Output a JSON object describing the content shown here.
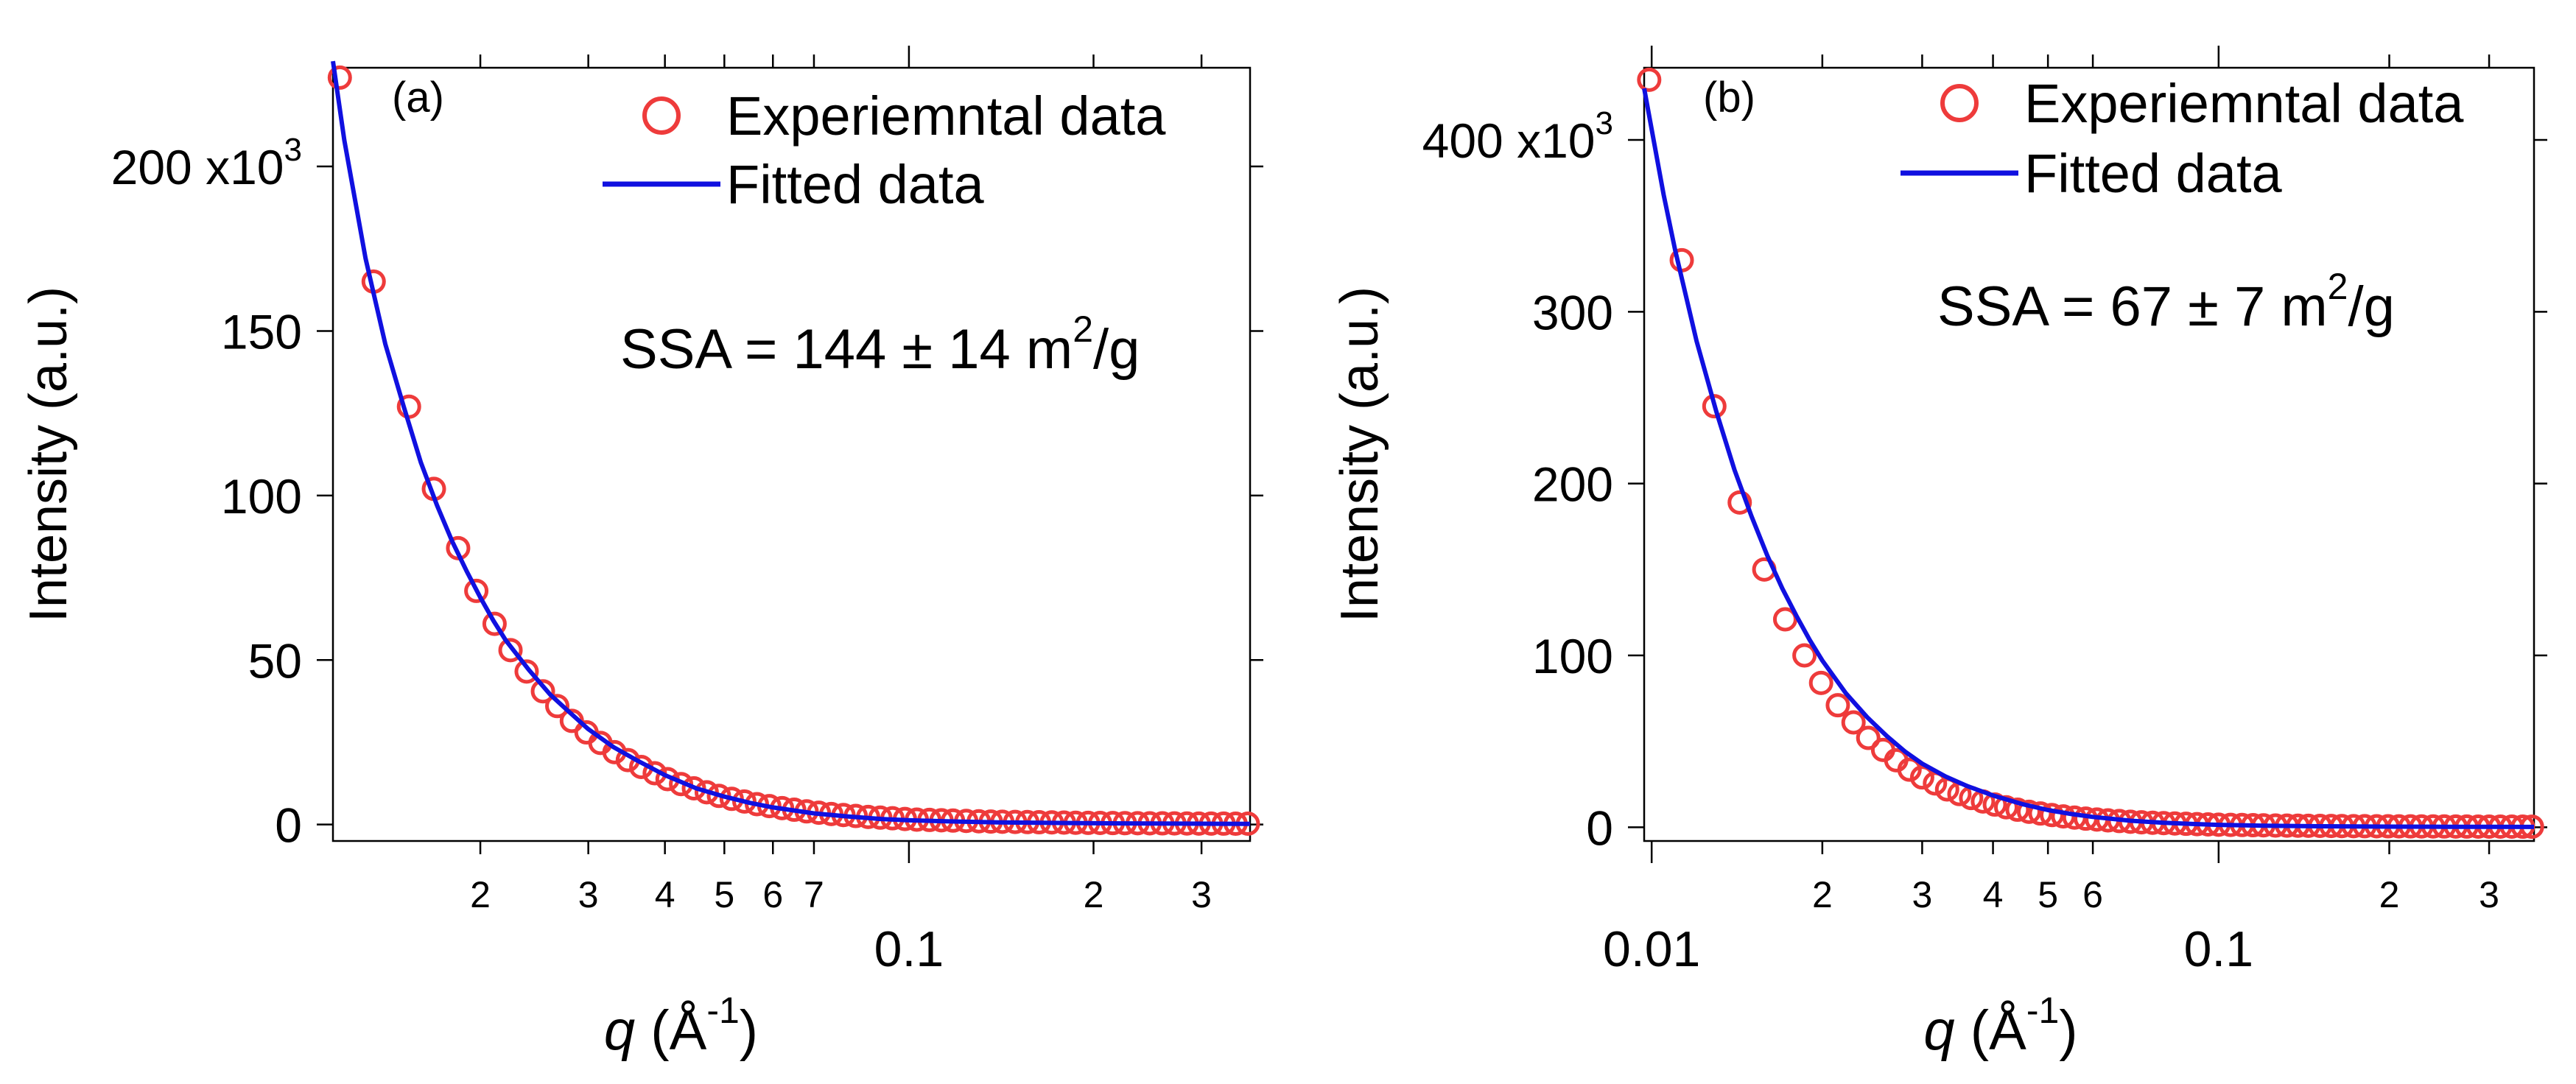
{
  "colors": {
    "experimental": "#ee3b3b",
    "fit": "#1010e0",
    "axis": "#000000",
    "background": "#ffffff"
  },
  "chart_data": [
    {
      "panel_label": "(a)",
      "type": "scatter",
      "x_scale": "log",
      "xlim": [
        0.0115,
        0.36
      ],
      "ylim": [
        -5,
        230
      ],
      "ylabel": "Intensity (a.u.)",
      "xlabel": {
        "main": "q (Å",
        "sup": "-1",
        "close": ")"
      },
      "y_ticks": [
        {
          "value": 0,
          "label": "0"
        },
        {
          "value": 50,
          "label": "50"
        },
        {
          "value": 100,
          "label": "100"
        },
        {
          "value": 150,
          "label": "150"
        },
        {
          "value": 200,
          "label": "200 x10",
          "sup": "3"
        }
      ],
      "x_ticks": [
        {
          "value": 0.02,
          "label": "2"
        },
        {
          "value": 0.03,
          "label": "3"
        },
        {
          "value": 0.04,
          "label": "4"
        },
        {
          "value": 0.05,
          "label": "5"
        },
        {
          "value": 0.06,
          "label": "6"
        },
        {
          "value": 0.07,
          "label": "7"
        },
        {
          "value": 0.1,
          "label": "0.1",
          "major": true
        },
        {
          "value": 0.2,
          "label": "2"
        },
        {
          "value": 0.3,
          "label": "3"
        }
      ],
      "annotation": {
        "text": "SSA = 144 ± 14 m",
        "sup": "2",
        "tail": "/g"
      },
      "legend": [
        {
          "marker": "circle",
          "label": "Experiemntal data"
        },
        {
          "marker": "line",
          "label": "Fitted data"
        }
      ],
      "series": [
        {
          "name": "Experiemntal data",
          "marker": "circle",
          "x": [
            0.0118,
            0.0134,
            0.0153,
            0.0168,
            0.0184,
            0.0197,
            0.0211,
            0.0224,
            0.0238,
            0.0253,
            0.0267,
            0.0282,
            0.0298,
            0.0314,
            0.0331,
            0.0348,
            0.0366,
            0.0385,
            0.0404,
            0.0425,
            0.0446,
            0.0468,
            0.049,
            0.0514,
            0.0539,
            0.0565,
            0.0592,
            0.0621,
            0.065,
            0.0681,
            0.0713,
            0.0747,
            0.0782,
            0.0819,
            0.0858,
            0.0898,
            0.094,
            0.0985,
            0.103,
            0.108,
            0.113,
            0.118,
            0.124,
            0.13,
            0.136,
            0.142,
            0.149,
            0.156,
            0.163,
            0.171,
            0.179,
            0.187,
            0.196,
            0.205,
            0.215,
            0.225,
            0.236,
            0.247,
            0.259,
            0.271,
            0.284,
            0.297,
            0.311,
            0.326,
            0.341,
            0.357
          ],
          "y": [
            227,
            165,
            127,
            102,
            84,
            71,
            61,
            53,
            46.5,
            40.5,
            36,
            31.5,
            28,
            24.8,
            22,
            19.6,
            17.5,
            15.6,
            13.8,
            12.3,
            11,
            9.8,
            8.7,
            7.8,
            7,
            6.2,
            5.6,
            5,
            4.5,
            4,
            3.6,
            3.2,
            2.9,
            2.6,
            2.3,
            2.1,
            1.9,
            1.7,
            1.5,
            1.4,
            1.3,
            1.2,
            1.1,
            1,
            0.9,
            0.85,
            0.8,
            0.75,
            0.7,
            0.65,
            0.6,
            0.55,
            0.5,
            0.48,
            0.45,
            0.42,
            0.4,
            0.38,
            0.36,
            0.34,
            0.32,
            0.3,
            0.29,
            0.28,
            0.27,
            0.26
          ]
        },
        {
          "name": "Fitted data",
          "marker": "line",
          "x": [
            0.0115,
            0.012,
            0.013,
            0.014,
            0.015,
            0.016,
            0.017,
            0.018,
            0.019,
            0.02,
            0.021,
            0.022,
            0.024,
            0.026,
            0.028,
            0.03,
            0.033,
            0.036,
            0.04,
            0.045,
            0.05,
            0.055,
            0.06,
            0.07,
            0.08,
            0.09,
            0.1,
            0.12,
            0.14,
            0.17,
            0.2,
            0.25,
            0.3,
            0.36
          ],
          "y": [
            232,
            208,
            172,
            146,
            127,
            110,
            97,
            86,
            77,
            69,
            62,
            56,
            47,
            39.5,
            34,
            29,
            23.5,
            19.5,
            15,
            11,
            8.5,
            6.6,
            5.2,
            3.4,
            2.4,
            1.7,
            1.3,
            0.9,
            0.65,
            0.5,
            0.4,
            0.3,
            0.25,
            0.2
          ]
        }
      ]
    },
    {
      "panel_label": "(b)",
      "type": "scatter",
      "x_scale": "log",
      "xlim": [
        0.0097,
        0.36
      ],
      "ylim": [
        -8,
        442
      ],
      "ylabel": "Intensity (a.u.)",
      "xlabel": {
        "main": "q (Å",
        "sup": "-1",
        "close": ")"
      },
      "y_ticks": [
        {
          "value": 0,
          "label": "0"
        },
        {
          "value": 100,
          "label": "100"
        },
        {
          "value": 200,
          "label": "200"
        },
        {
          "value": 300,
          "label": "300"
        },
        {
          "value": 400,
          "label": "400 x10",
          "sup": "3"
        }
      ],
      "x_ticks": [
        {
          "value": 0.01,
          "label": "0.01",
          "major": true
        },
        {
          "value": 0.02,
          "label": "2"
        },
        {
          "value": 0.03,
          "label": "3"
        },
        {
          "value": 0.04,
          "label": "4"
        },
        {
          "value": 0.05,
          "label": "5"
        },
        {
          "value": 0.06,
          "label": "6"
        },
        {
          "value": 0.1,
          "label": "0.1",
          "major": true
        },
        {
          "value": 0.2,
          "label": "2"
        },
        {
          "value": 0.3,
          "label": "3"
        }
      ],
      "annotation": {
        "text": "SSA = 67 ± 7 m",
        "sup": "2",
        "tail": "/g"
      },
      "legend": [
        {
          "marker": "circle",
          "label": "Experiemntal data"
        },
        {
          "marker": "line",
          "label": "Fitted data"
        }
      ],
      "series": [
        {
          "name": "Experiemntal data",
          "marker": "circle",
          "x": [
            0.0099,
            0.0113,
            0.0129,
            0.0143,
            0.0158,
            0.0172,
            0.0186,
            0.0199,
            0.0213,
            0.0227,
            0.0241,
            0.0256,
            0.027,
            0.0285,
            0.03,
            0.0316,
            0.0332,
            0.0349,
            0.0366,
            0.0384,
            0.0403,
            0.0422,
            0.0442,
            0.0463,
            0.0485,
            0.0508,
            0.0532,
            0.0557,
            0.0583,
            0.061,
            0.0638,
            0.0668,
            0.0699,
            0.0731,
            0.0765,
            0.08,
            0.0837,
            0.0876,
            0.0916,
            0.0958,
            0.1,
            0.105,
            0.11,
            0.115,
            0.12,
            0.126,
            0.132,
            0.138,
            0.144,
            0.151,
            0.158,
            0.165,
            0.173,
            0.181,
            0.19,
            0.199,
            0.208,
            0.218,
            0.228,
            0.239,
            0.25,
            0.262,
            0.274,
            0.287,
            0.3,
            0.314,
            0.329,
            0.344,
            0.357
          ],
          "y": [
            435,
            330,
            245,
            189,
            150,
            121,
            100,
            84,
            71,
            61,
            52,
            45,
            39,
            33.5,
            29,
            25.5,
            22,
            19.3,
            17,
            15,
            13.2,
            11.6,
            10.2,
            9,
            8,
            7.1,
            6.3,
            5.6,
            5,
            4.5,
            4,
            3.6,
            3.2,
            2.9,
            2.6,
            2.4,
            2.2,
            2,
            1.8,
            1.65,
            1.5,
            1.4,
            1.3,
            1.2,
            1.1,
            1,
            0.95,
            0.9,
            0.85,
            0.8,
            0.75,
            0.7,
            0.65,
            0.6,
            0.58,
            0.55,
            0.52,
            0.5,
            0.48,
            0.46,
            0.44,
            0.42,
            0.4,
            0.38,
            0.37,
            0.36,
            0.35,
            0.34,
            0.33
          ]
        },
        {
          "name": "Fitted data",
          "marker": "line",
          "x": [
            0.0097,
            0.0105,
            0.011,
            0.012,
            0.013,
            0.014,
            0.015,
            0.016,
            0.017,
            0.018,
            0.019,
            0.02,
            0.022,
            0.024,
            0.026,
            0.028,
            0.03,
            0.033,
            0.036,
            0.04,
            0.045,
            0.05,
            0.055,
            0.06,
            0.07,
            0.08,
            0.09,
            0.1,
            0.12,
            0.15,
            0.2,
            0.25,
            0.3,
            0.36
          ],
          "y": [
            430,
            368,
            336,
            283,
            242,
            208,
            181,
            158,
            139,
            123,
            109,
            97,
            78,
            64,
            53,
            44,
            37,
            29.5,
            24,
            18.5,
            13.5,
            10,
            7.7,
            6,
            3.8,
            2.6,
            1.9,
            1.4,
            0.9,
            0.55,
            0.35,
            0.28,
            0.24,
            0.2
          ]
        }
      ]
    }
  ]
}
